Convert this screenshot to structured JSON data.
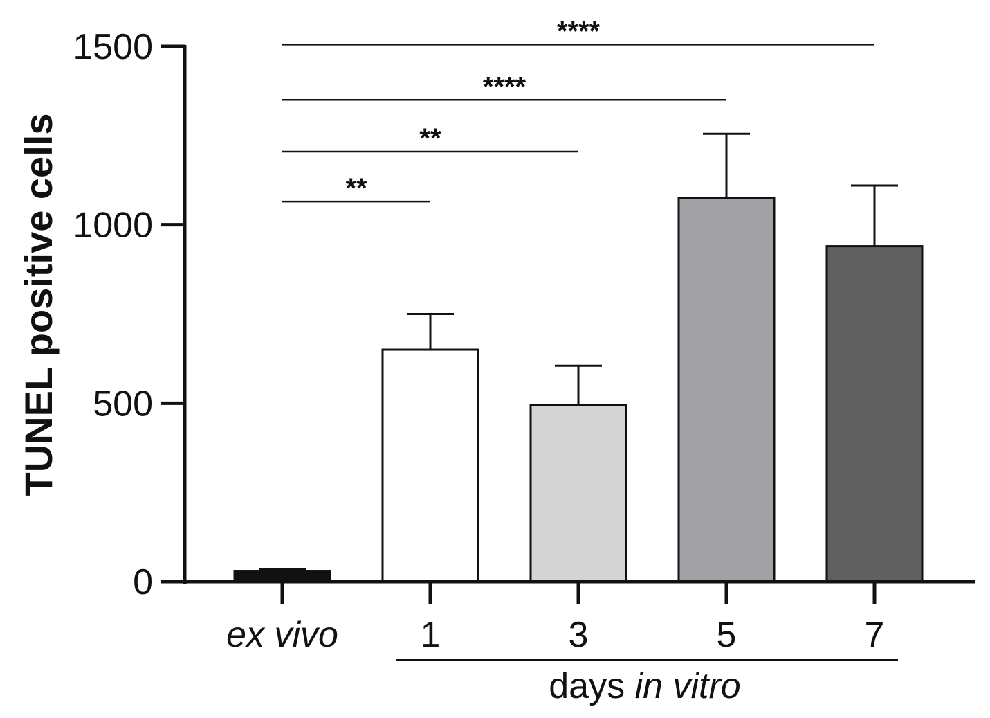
{
  "chart_data": {
    "type": "bar",
    "title": "",
    "ylabel": "TUNEL positive cells",
    "ylim": [
      0,
      1500
    ],
    "yticks": [
      "0",
      "500",
      "1000",
      "1500"
    ],
    "categories": [
      "ex vivo",
      "1",
      "3",
      "5",
      "7"
    ],
    "category_italic": [
      true,
      false,
      false,
      false,
      false
    ],
    "values": [
      30,
      650,
      495,
      1075,
      940
    ],
    "errors": [
      5,
      100,
      110,
      180,
      170
    ],
    "colors": [
      "#111111",
      "#ffffff",
      "#d4d4d4",
      "#a2a2a6",
      "#606060"
    ],
    "group_label": {
      "prefix": "days ",
      "emphasis": "in vitro",
      "spans_categories": [
        "1",
        "7"
      ]
    },
    "significance": [
      {
        "from": "ex vivo",
        "to": "1",
        "label": "**",
        "level": 1065
      },
      {
        "from": "ex vivo",
        "to": "3",
        "label": "**",
        "level": 1205
      },
      {
        "from": "ex vivo",
        "to": "5",
        "label": "****",
        "level": 1350
      },
      {
        "from": "ex vivo",
        "to": "7",
        "label": "****",
        "level": 1505
      }
    ]
  }
}
